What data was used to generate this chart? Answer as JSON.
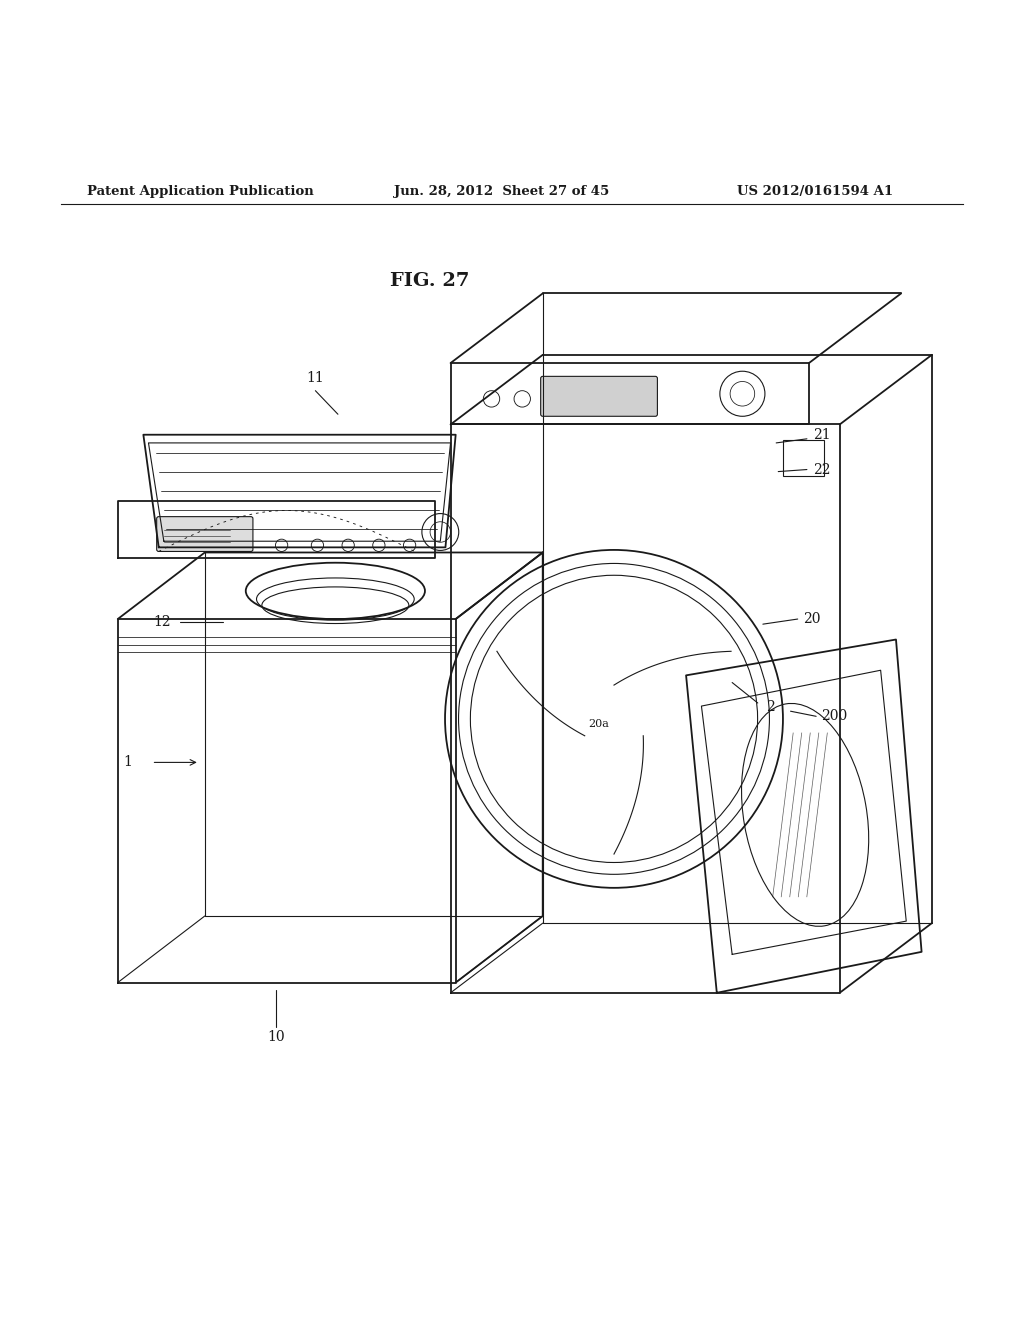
{
  "background_color": "#ffffff",
  "line_color": "#1a1a1a",
  "header_text": "Patent Application Publication",
  "header_date": "Jun. 28, 2012  Sheet 27 of 45",
  "header_patent": "US 2012/0161594 A1",
  "fig_label": "FIG. 27"
}
